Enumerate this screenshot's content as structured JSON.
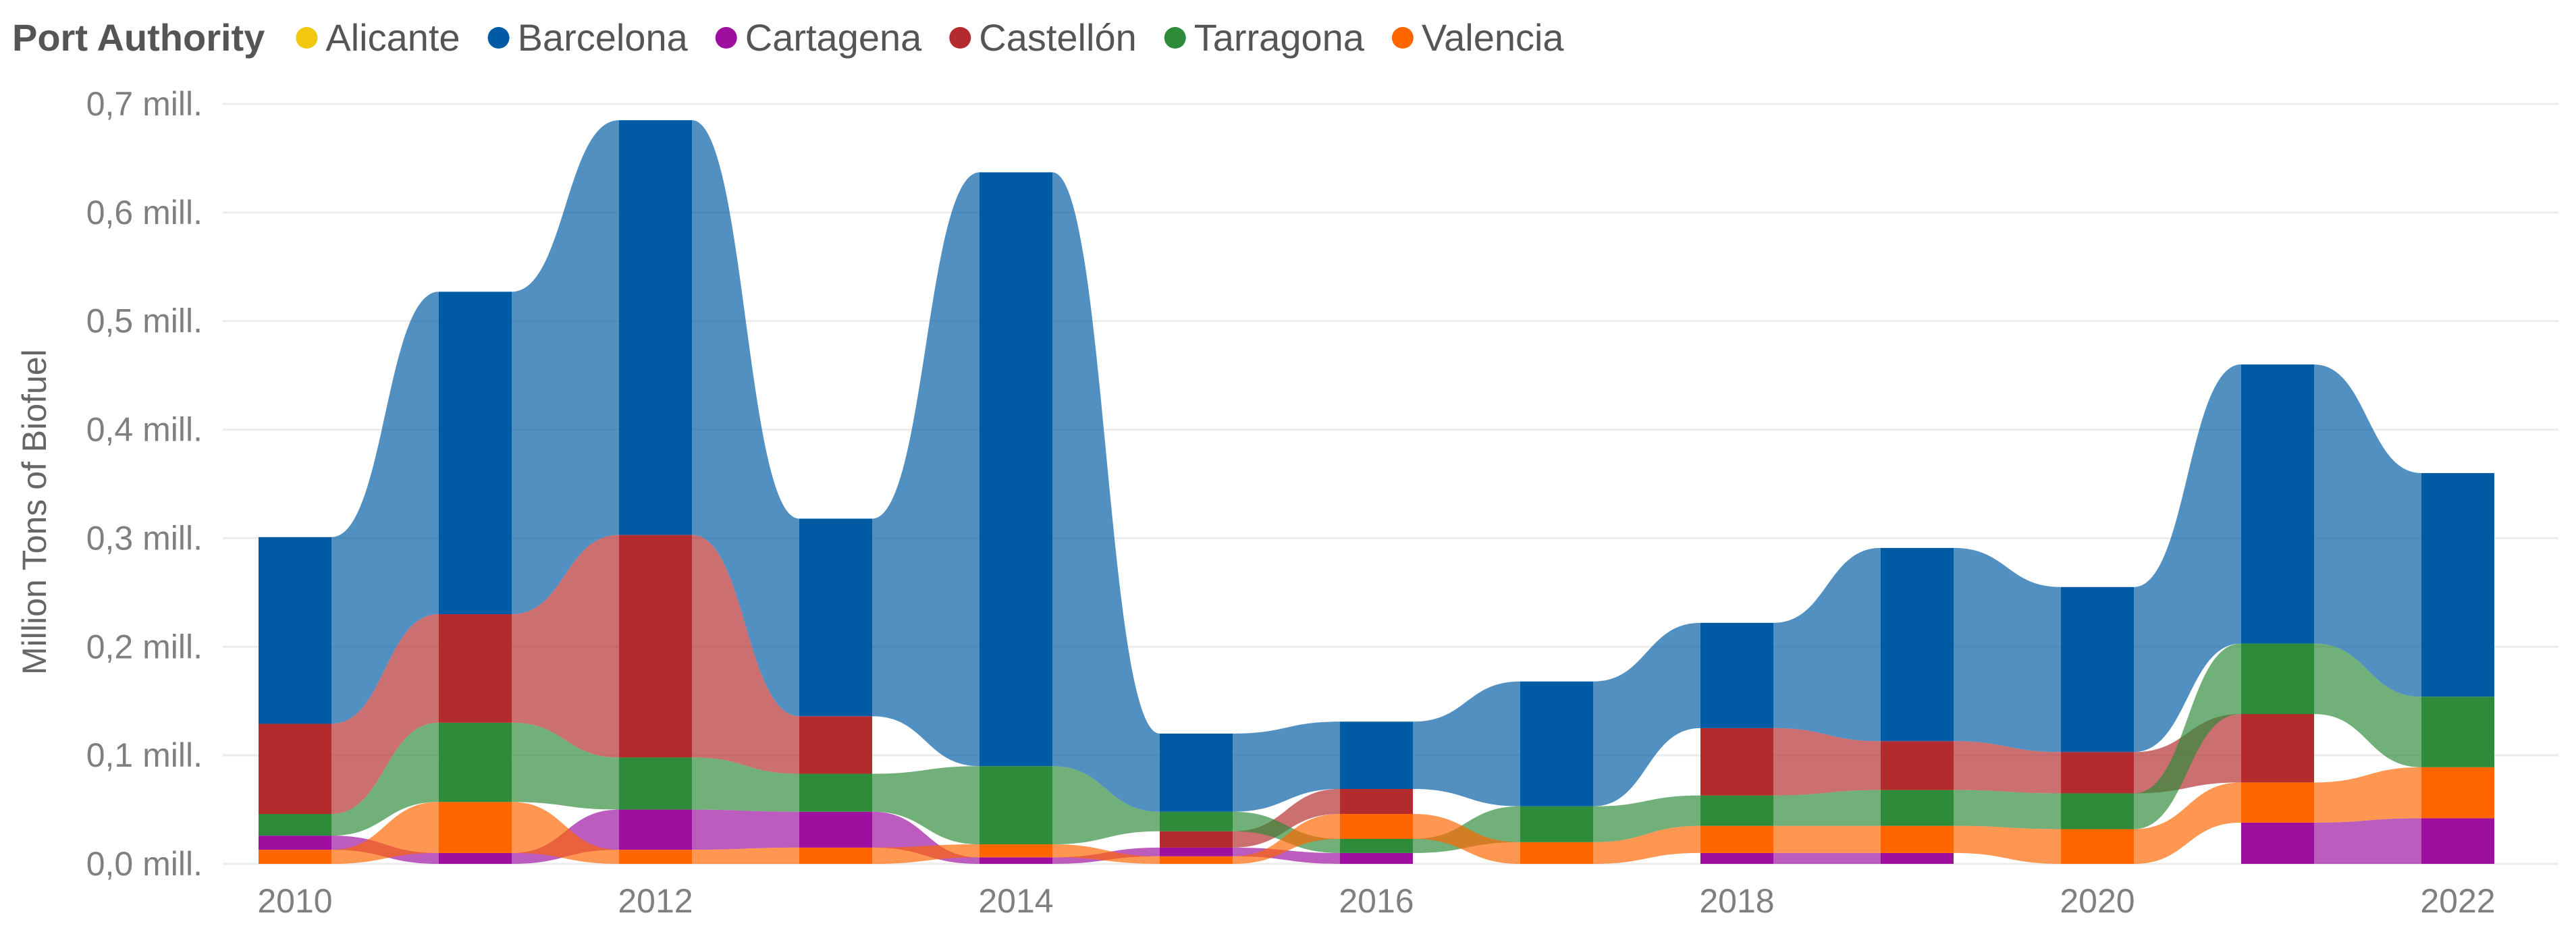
{
  "chart_data": {
    "type": "ribbon",
    "title": "",
    "legend_title": "Port Authority",
    "legend_position": "top-left",
    "ylabel": "Million Tons of Biofuel",
    "xlabel": "",
    "ylim": [
      0,
      0.7
    ],
    "y_ticks": [
      0,
      0.1,
      0.2,
      0.3,
      0.4,
      0.5,
      0.6,
      0.7
    ],
    "y_tick_labels": [
      "0,0 mill.",
      "0,1 mill.",
      "0,2 mill.",
      "0,3 mill.",
      "0,4 mill.",
      "0,5 mill.",
      "0,6 mill.",
      "0,7 mill."
    ],
    "categories": [
      "2010",
      "2011",
      "2012",
      "2013",
      "2014",
      "2015",
      "2016",
      "2017",
      "2018",
      "2019",
      "2020",
      "2021",
      "2022"
    ],
    "x_tick_labels": [
      "2010",
      "2012",
      "2014",
      "2016",
      "2018",
      "2020",
      "2022"
    ],
    "grid": true,
    "series": [
      {
        "name": "Alicante",
        "color": "#F2C80F",
        "values": [
          0,
          0,
          0,
          0,
          0,
          0,
          0,
          0,
          0,
          0,
          0,
          0,
          0
        ]
      },
      {
        "name": "Barcelona",
        "color": "#005BA5",
        "values": [
          0.172,
          0.297,
          0.382,
          0.182,
          0.547,
          0.072,
          0.062,
          0.115,
          0.097,
          0.178,
          0.152,
          0.257,
          0.206
        ]
      },
      {
        "name": "Cartagena",
        "color": "#9E0FA0",
        "values": [
          0.013,
          0.01,
          0.037,
          0.033,
          0.006,
          0.008,
          0.01,
          0,
          0.01,
          0.01,
          0,
          0.038,
          0.042
        ]
      },
      {
        "name": "Castellón",
        "color": "#B42B2E",
        "values": [
          0.083,
          0.1,
          0.205,
          0.053,
          0,
          0.015,
          0.023,
          0,
          0.062,
          0.045,
          0.038,
          0.063,
          0
        ]
      },
      {
        "name": "Tarragona",
        "color": "#2E8B3A",
        "values": [
          0.02,
          0.073,
          0.048,
          0.035,
          0.072,
          0.018,
          0.013,
          0.033,
          0.028,
          0.033,
          0.033,
          0.065,
          0.065
        ]
      },
      {
        "name": "Valencia",
        "color": "#FF6600",
        "values": [
          0.013,
          0.047,
          0.013,
          0.015,
          0.012,
          0.007,
          0.023,
          0.02,
          0.025,
          0.025,
          0.032,
          0.037,
          0.047
        ]
      }
    ],
    "stack_order_per_year": [
      [
        "Valencia",
        "Cartagena",
        "Tarragona",
        "Castellón",
        "Barcelona"
      ],
      [
        "Cartagena",
        "Valencia",
        "Tarragona",
        "Castellón",
        "Barcelona"
      ],
      [
        "Valencia",
        "Cartagena",
        "Tarragona",
        "Castellón",
        "Barcelona"
      ],
      [
        "Valencia",
        "Cartagena",
        "Tarragona",
        "Castellón",
        "Barcelona"
      ],
      [
        "Cartagena",
        "Valencia",
        "Tarragona",
        "Barcelona"
      ],
      [
        "Valencia",
        "Cartagena",
        "Castellón",
        "Tarragona",
        "Barcelona"
      ],
      [
        "Cartagena",
        "Tarragona",
        "Valencia",
        "Castellón",
        "Barcelona"
      ],
      [
        "Valencia",
        "Tarragona",
        "Barcelona"
      ],
      [
        "Cartagena",
        "Valencia",
        "Tarragona",
        "Castellón",
        "Barcelona"
      ],
      [
        "Cartagena",
        "Valencia",
        "Tarragona",
        "Castellón",
        "Barcelona"
      ],
      [
        "Valencia",
        "Tarragona",
        "Castellón",
        "Barcelona"
      ],
      [
        "Cartagena",
        "Valencia",
        "Castellón",
        "Tarragona",
        "Barcelona"
      ],
      [
        "Cartagena",
        "Valencia",
        "Tarragona",
        "Barcelona"
      ]
    ]
  }
}
